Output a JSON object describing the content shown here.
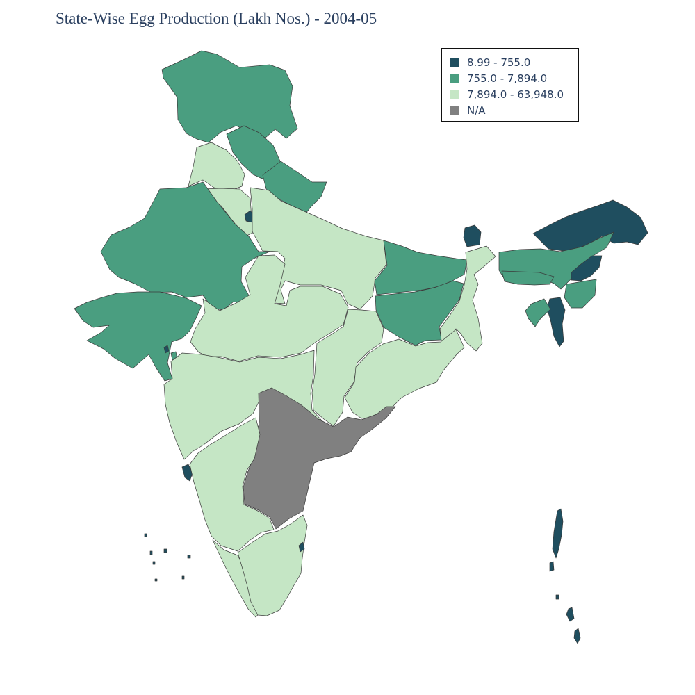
{
  "title": "State-Wise Egg Production (Lakh Nos.) - 2004-05",
  "chart_data": {
    "type": "choropleth",
    "legend_placement": "top-right",
    "bins": [
      {
        "label": "8.99 - 755.0",
        "color": "#1f4e5f"
      },
      {
        "label": "755.0 - 7,894.0",
        "color": "#4a9e80"
      },
      {
        "label": "7,894.0 - 63,948.0",
        "color": "#c5e6c5"
      },
      {
        "label": "N/A",
        "color": "#808080"
      }
    ],
    "regions": [
      {
        "name": "Jammu & Kashmir",
        "bin": 1
      },
      {
        "name": "Himachal Pradesh",
        "bin": 1
      },
      {
        "name": "Punjab",
        "bin": 2
      },
      {
        "name": "Haryana",
        "bin": 2
      },
      {
        "name": "Delhi",
        "bin": 0
      },
      {
        "name": "Uttarakhand",
        "bin": 1
      },
      {
        "name": "Rajasthan",
        "bin": 1
      },
      {
        "name": "Gujarat",
        "bin": 1
      },
      {
        "name": "Daman & Diu",
        "bin": 0
      },
      {
        "name": "Dadra & Nagar Haveli",
        "bin": 1
      },
      {
        "name": "Uttar Pradesh",
        "bin": 2
      },
      {
        "name": "Madhya Pradesh",
        "bin": 2
      },
      {
        "name": "Bihar",
        "bin": 1
      },
      {
        "name": "Jharkhand",
        "bin": 1
      },
      {
        "name": "West Bengal",
        "bin": 2
      },
      {
        "name": "Sikkim",
        "bin": 0
      },
      {
        "name": "Chhattisgarh",
        "bin": 2
      },
      {
        "name": "Odisha",
        "bin": 2
      },
      {
        "name": "Maharashtra",
        "bin": 2
      },
      {
        "name": "Goa",
        "bin": 0
      },
      {
        "name": "Andhra Pradesh",
        "bin": 3
      },
      {
        "name": "Karnataka",
        "bin": 2
      },
      {
        "name": "Kerala",
        "bin": 2
      },
      {
        "name": "Tamil Nadu",
        "bin": 2
      },
      {
        "name": "Puducherry",
        "bin": 0
      },
      {
        "name": "Lakshadweep",
        "bin": 0
      },
      {
        "name": "Arunachal Pradesh",
        "bin": 0
      },
      {
        "name": "Assam",
        "bin": 1
      },
      {
        "name": "Meghalaya",
        "bin": 1
      },
      {
        "name": "Nagaland",
        "bin": 0
      },
      {
        "name": "Manipur",
        "bin": 1
      },
      {
        "name": "Mizoram",
        "bin": 0
      },
      {
        "name": "Tripura",
        "bin": 1
      },
      {
        "name": "Andaman & Nicobar Islands",
        "bin": 0
      }
    ]
  }
}
